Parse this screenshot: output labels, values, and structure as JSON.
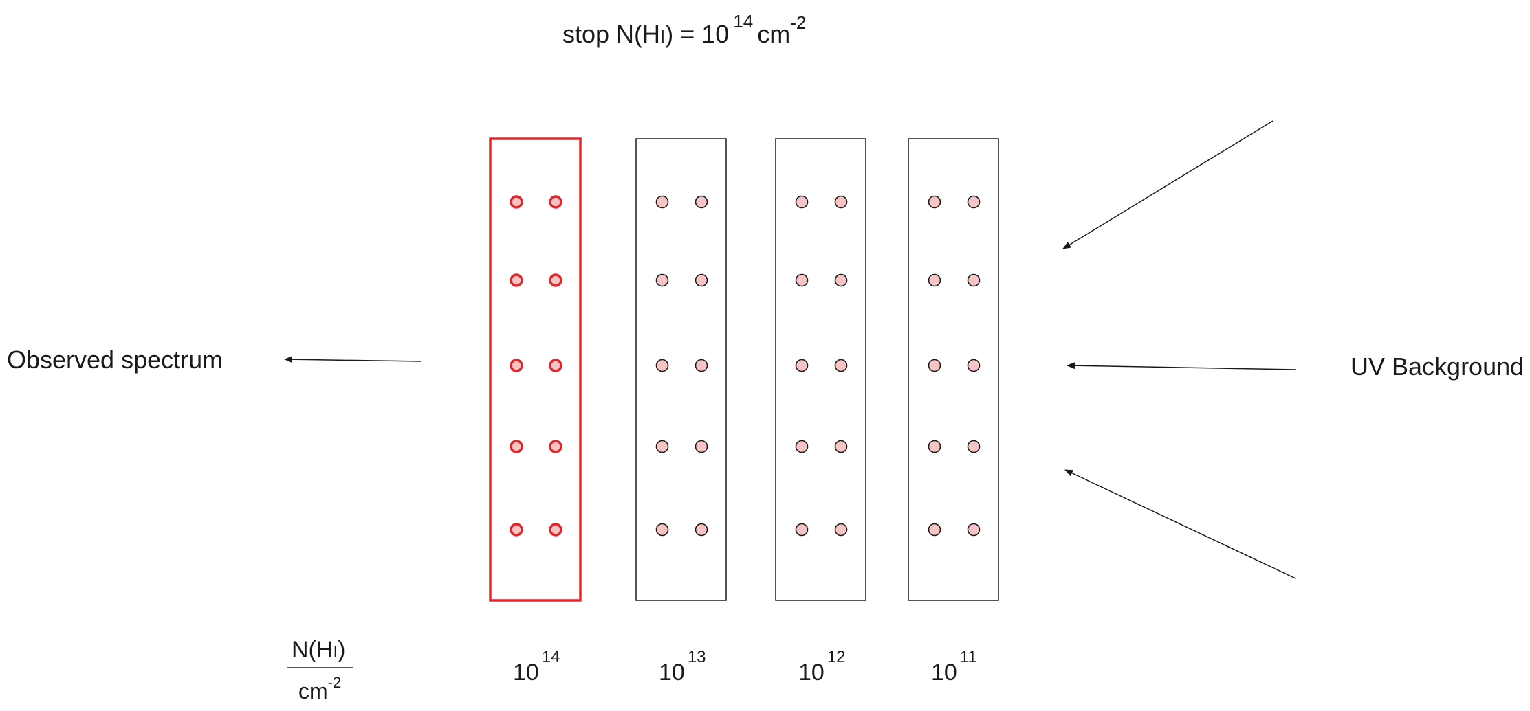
{
  "title": {
    "prefix": "stop N(H",
    "ion": "I",
    "middle": ") = 10",
    "exponent": "14",
    "unit": "cm",
    "unit_exponent": "-2"
  },
  "left_label": "Observed spectrum",
  "right_label": "UV Background",
  "axis_label": {
    "numerator_prefix": "N(H",
    "numerator_ion": "I",
    "numerator_suffix": ")",
    "denominator": "cm",
    "denominator_exponent": "-2"
  },
  "slabs": [
    {
      "base": "10",
      "exponent": "14",
      "highlighted": true
    },
    {
      "base": "10",
      "exponent": "13",
      "highlighted": false
    },
    {
      "base": "10",
      "exponent": "12",
      "highlighted": false
    },
    {
      "base": "10",
      "exponent": "11",
      "highlighted": false
    }
  ],
  "colors": {
    "highlight": "#e0282b",
    "dot_fill": "#f6c4c4",
    "line": "#1a1a1a",
    "text": "#1a1a1a",
    "background": "#ffffff"
  }
}
